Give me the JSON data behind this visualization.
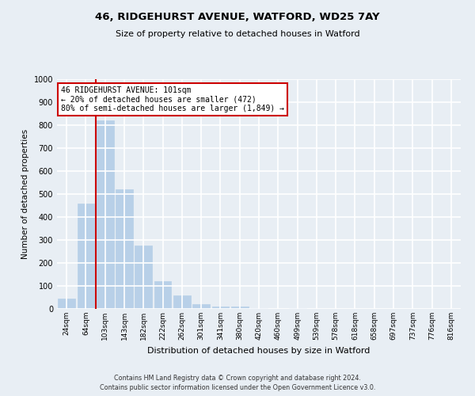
{
  "title_line1": "46, RIDGEHURST AVENUE, WATFORD, WD25 7AY",
  "title_line2": "Size of property relative to detached houses in Watford",
  "xlabel": "Distribution of detached houses by size in Watford",
  "ylabel": "Number of detached properties",
  "categories": [
    "24sqm",
    "64sqm",
    "103sqm",
    "143sqm",
    "182sqm",
    "222sqm",
    "262sqm",
    "301sqm",
    "341sqm",
    "380sqm",
    "420sqm",
    "460sqm",
    "499sqm",
    "539sqm",
    "578sqm",
    "618sqm",
    "658sqm",
    "697sqm",
    "737sqm",
    "776sqm",
    "816sqm"
  ],
  "values": [
    45,
    460,
    820,
    520,
    275,
    120,
    60,
    22,
    10,
    10,
    5,
    0,
    5,
    0,
    0,
    0,
    0,
    0,
    0,
    0,
    0
  ],
  "bar_color": "#b8d0e8",
  "bar_edgecolor": "#b8d0e8",
  "ylim": [
    0,
    1000
  ],
  "yticks": [
    0,
    100,
    200,
    300,
    400,
    500,
    600,
    700,
    800,
    900,
    1000
  ],
  "property_line_color": "#cc0000",
  "annotation_text": "46 RIDGEHURST AVENUE: 101sqm\n← 20% of detached houses are smaller (472)\n80% of semi-detached houses are larger (1,849) →",
  "annotation_box_color": "#ffffff",
  "annotation_box_edgecolor": "#cc0000",
  "footer_line1": "Contains HM Land Registry data © Crown copyright and database right 2024.",
  "footer_line2": "Contains public sector information licensed under the Open Government Licence v3.0.",
  "background_color": "#e8eef4",
  "grid_color": "#ffffff"
}
